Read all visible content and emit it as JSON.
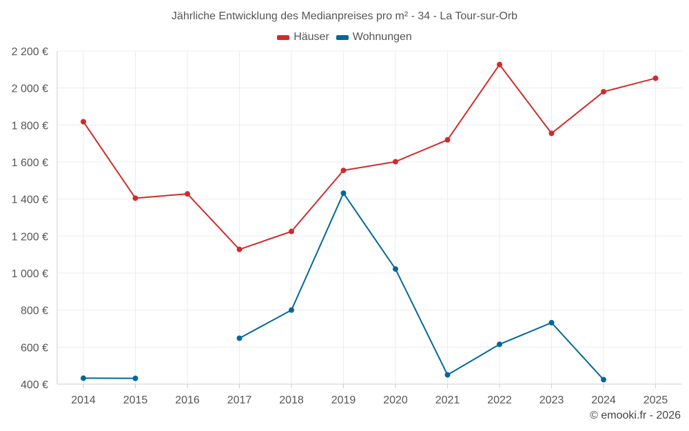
{
  "chart_data": {
    "type": "line",
    "title": "Jährliche Entwicklung des Medianpreises pro m² - 34 - La Tour-sur-Orb",
    "categories": [
      "2014",
      "2015",
      "2016",
      "2017",
      "2018",
      "2019",
      "2020",
      "2021",
      "2022",
      "2023",
      "2024",
      "2025"
    ],
    "ylim": [
      400,
      2200
    ],
    "yticks": [
      400,
      600,
      800,
      1000,
      1200,
      1400,
      1600,
      1800,
      2000,
      2200
    ],
    "ytick_labels": [
      "400 €",
      "600 €",
      "800 €",
      "1 000 €",
      "1 200 €",
      "1 400 €",
      "1 600 €",
      "1 800 €",
      "2 000 €",
      "2 200 €"
    ],
    "grid": true,
    "legend_position": "top-center",
    "series": [
      {
        "name": "Häuser",
        "color": "#d12a2a",
        "values": [
          1818,
          1405,
          1428,
          1128,
          1225,
          1555,
          1602,
          1720,
          2127,
          1755,
          1980,
          2053
        ]
      },
      {
        "name": "Wohnungen",
        "color": "#00679b",
        "values": [
          432,
          431,
          null,
          648,
          800,
          1432,
          1022,
          450,
          615,
          732,
          424,
          null
        ]
      }
    ]
  },
  "credit": "© emooki.fr - 2026"
}
